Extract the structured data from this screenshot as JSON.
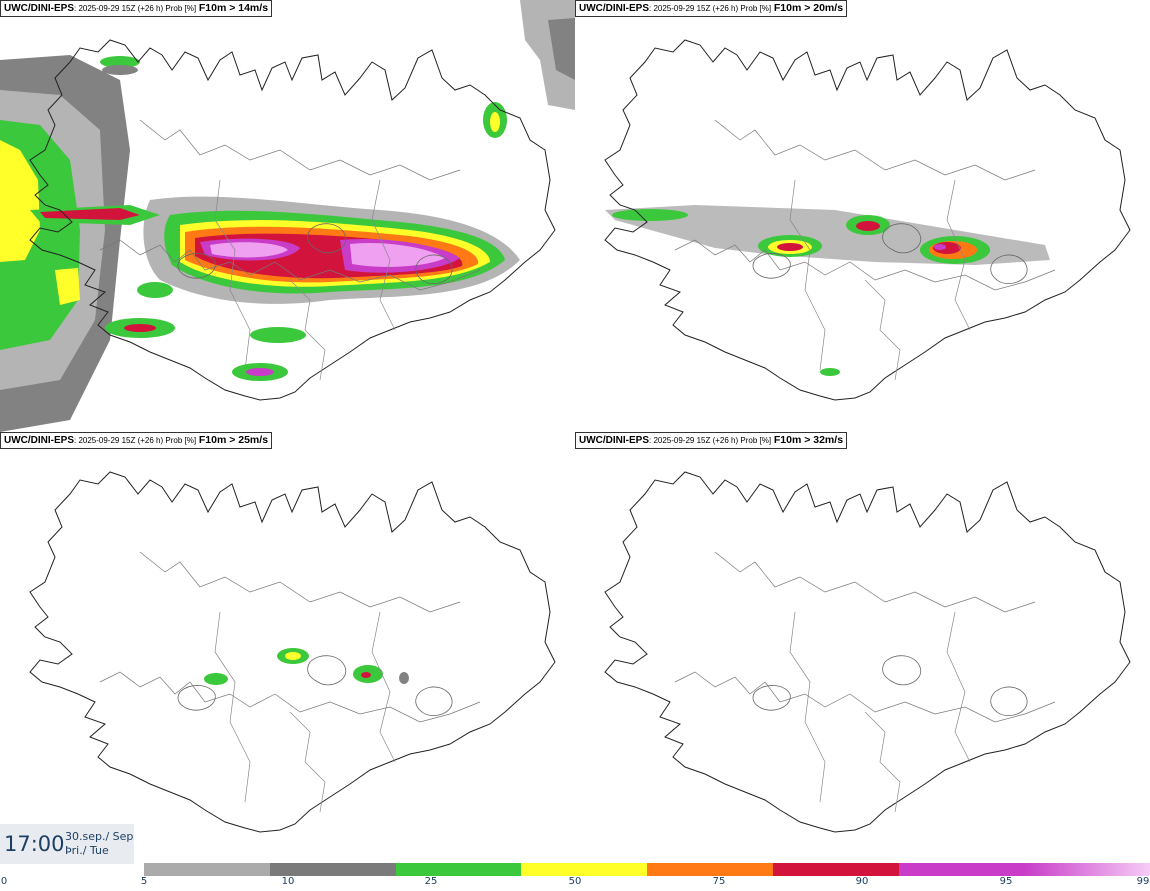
{
  "panels": [
    {
      "model": "UWC/DINI-EPS",
      "meta": ": 2025-09-29 15Z (+26 h) Prob [%]",
      "threshold": "F10m > 14m/s"
    },
    {
      "model": "UWC/DINI-EPS",
      "meta": ": 2025-09-29 15Z (+26 h) Prob [%]",
      "threshold": "F10m > 20m/s"
    },
    {
      "model": "UWC/DINI-EPS",
      "meta": ": 2025-09-29 15Z (+26 h) Prob [%]",
      "threshold": "F10m > 25m/s"
    },
    {
      "model": "UWC/DINI-EPS",
      "meta": ": 2025-09-29 15Z (+26 h) Prob [%]",
      "threshold": "F10m > 32m/s"
    }
  ],
  "valid_time": {
    "time": "17:00",
    "date_line1": "30.sep./ Sep",
    "date_line2": "Þri./ Tue"
  },
  "legend": {
    "ticks": [
      "0",
      "5",
      "10",
      "25",
      "50",
      "75",
      "90",
      "95",
      "99"
    ],
    "colors": [
      "#ababab",
      "#7a7a7a",
      "#3cc83c",
      "#ffff2a",
      "#ff7a14",
      "#d2143c",
      "#c83cc8",
      "#f0b4f0"
    ]
  },
  "colors": {
    "light_gray": "#b4b4b4",
    "dark_gray": "#828282",
    "green": "#3cc83c",
    "yellow": "#ffff2a",
    "orange": "#ff7a14",
    "red": "#d2143c",
    "magenta": "#c83cc8",
    "pink": "#f0a0f0"
  }
}
